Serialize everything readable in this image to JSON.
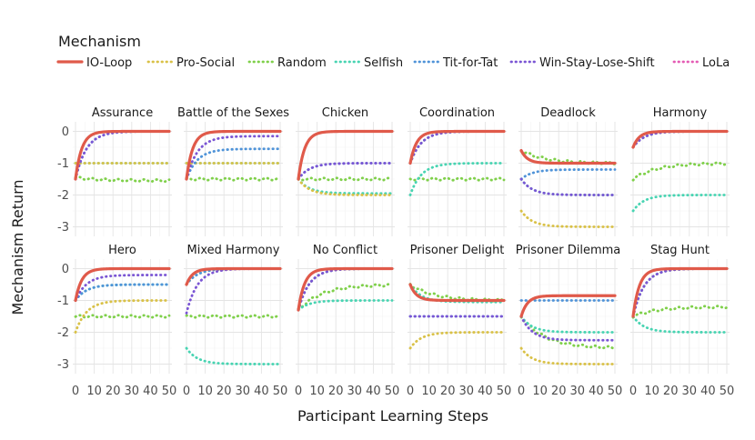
{
  "legend": {
    "title": "Mechanism",
    "items": [
      {
        "name": "IO-Loop",
        "color": "#e05a4a",
        "style": "solid"
      },
      {
        "name": "Pro-Social",
        "color": "#d9c147",
        "style": "dotted"
      },
      {
        "name": "Random",
        "color": "#7fd04a",
        "style": "dotted"
      },
      {
        "name": "Selfish",
        "color": "#48d4b2",
        "style": "dotted"
      },
      {
        "name": "Tit-for-Tat",
        "color": "#4f93d8",
        "style": "dotted"
      },
      {
        "name": "Win-Stay-Lose-Shift",
        "color": "#7a55d4",
        "style": "dotted"
      },
      {
        "name": "LoLa",
        "color": "#e45bb4",
        "style": "dotted"
      }
    ]
  },
  "axes": {
    "xlabel": "Participant Learning Steps",
    "ylabel": "Mechanism Return"
  },
  "chart_data": {
    "type": "line",
    "xlim": [
      0,
      50
    ],
    "ylim": [
      -3.3,
      0.3
    ],
    "xticks": [
      "0",
      "10",
      "20",
      "30",
      "40",
      "50"
    ],
    "yticks": [
      "0",
      "-1",
      "-2",
      "-3"
    ],
    "grid": true,
    "legend_position": "top",
    "panels": [
      {
        "title": "Assurance",
        "series": [
          {
            "name": "IO-Loop",
            "start": -1.5,
            "end": 0
          },
          {
            "name": "LoLa",
            "start": -1.5,
            "end": 0
          },
          {
            "name": "Win-Stay-Lose-Shift",
            "start": -1.5,
            "end": 0
          },
          {
            "name": "Tit-for-Tat",
            "start": -1.5,
            "end": 0
          },
          {
            "name": "Pro-Social",
            "start": -1.0,
            "end": -1.0
          },
          {
            "name": "Selfish",
            "start": -1.0,
            "end": -1.0
          },
          {
            "name": "Random",
            "start": -1.45,
            "end": -1.55
          }
        ]
      },
      {
        "title": "Battle of the Sexes",
        "series": [
          {
            "name": "IO-Loop",
            "start": -1.5,
            "end": 0
          },
          {
            "name": "LoLa",
            "start": -1.5,
            "end": 0
          },
          {
            "name": "Win-Stay-Lose-Shift",
            "start": -1.5,
            "end": -0.15
          },
          {
            "name": "Tit-for-Tat",
            "start": -1.5,
            "end": -0.55
          },
          {
            "name": "Pro-Social",
            "start": -1.0,
            "end": -1.0
          },
          {
            "name": "Selfish",
            "start": -1.0,
            "end": -1.0
          },
          {
            "name": "Random",
            "start": -1.5,
            "end": -1.5
          }
        ]
      },
      {
        "title": "Chicken",
        "series": [
          {
            "name": "IO-Loop",
            "start": -1.5,
            "end": 0
          },
          {
            "name": "LoLa",
            "start": -1.5,
            "end": 0
          },
          {
            "name": "Win-Stay-Lose-Shift",
            "start": -1.5,
            "end": -1.0
          },
          {
            "name": "Tit-for-Tat",
            "start": -1.5,
            "end": -1.0
          },
          {
            "name": "Selfish",
            "start": -1.5,
            "end": -1.95
          },
          {
            "name": "Pro-Social",
            "start": -1.5,
            "end": -2.0
          },
          {
            "name": "Random",
            "start": -1.5,
            "end": -1.5
          }
        ]
      },
      {
        "title": "Coordination",
        "series": [
          {
            "name": "IO-Loop",
            "start": -1.0,
            "end": 0
          },
          {
            "name": "LoLa",
            "start": -1.0,
            "end": 0
          },
          {
            "name": "Win-Stay-Lose-Shift",
            "start": -1.0,
            "end": 0
          },
          {
            "name": "Tit-for-Tat",
            "start": -1.0,
            "end": 0
          },
          {
            "name": "Pro-Social",
            "start": -1.0,
            "end": 0
          },
          {
            "name": "Selfish",
            "start": -2.0,
            "end": -1.0
          },
          {
            "name": "Random",
            "start": -1.5,
            "end": -1.5
          }
        ]
      },
      {
        "title": "Deadlock",
        "series": [
          {
            "name": "IO-Loop",
            "start": -0.6,
            "end": -1.0
          },
          {
            "name": "LoLa",
            "start": -0.6,
            "end": -1.0
          },
          {
            "name": "Random",
            "start": -0.6,
            "end": -1.0
          },
          {
            "name": "Tit-for-Tat",
            "start": -1.5,
            "end": -1.2
          },
          {
            "name": "Selfish",
            "start": -1.5,
            "end": -2.0
          },
          {
            "name": "Win-Stay-Lose-Shift",
            "start": -1.5,
            "end": -2.0
          },
          {
            "name": "Pro-Social",
            "start": -2.5,
            "end": -3.0
          }
        ]
      },
      {
        "title": "Harmony",
        "series": [
          {
            "name": "IO-Loop",
            "start": -0.5,
            "end": 0
          },
          {
            "name": "LoLa",
            "start": -0.5,
            "end": 0
          },
          {
            "name": "Win-Stay-Lose-Shift",
            "start": -0.5,
            "end": 0
          },
          {
            "name": "Tit-for-Tat",
            "start": -0.5,
            "end": 0
          },
          {
            "name": "Pro-Social",
            "start": -0.5,
            "end": 0
          },
          {
            "name": "Random",
            "start": -1.5,
            "end": -1.0
          },
          {
            "name": "Selfish",
            "start": -2.5,
            "end": -2.0
          }
        ]
      },
      {
        "title": "Hero",
        "series": [
          {
            "name": "IO-Loop",
            "start": -1.0,
            "end": 0
          },
          {
            "name": "LoLa",
            "start": -1.0,
            "end": 0
          },
          {
            "name": "Win-Stay-Lose-Shift",
            "start": -1.0,
            "end": -0.2
          },
          {
            "name": "Tit-for-Tat",
            "start": -1.0,
            "end": -0.5
          },
          {
            "name": "Selfish",
            "start": -1.0,
            "end": -0.5
          },
          {
            "name": "Pro-Social",
            "start": -2.0,
            "end": -1.0
          },
          {
            "name": "Random",
            "start": -1.5,
            "end": -1.5
          }
        ]
      },
      {
        "title": "Mixed Harmony",
        "series": [
          {
            "name": "IO-Loop",
            "start": -0.5,
            "end": 0
          },
          {
            "name": "LoLa",
            "start": -0.5,
            "end": 0
          },
          {
            "name": "Tit-for-Tat",
            "start": -0.5,
            "end": 0
          },
          {
            "name": "Pro-Social",
            "start": -0.5,
            "end": 0
          },
          {
            "name": "Win-Stay-Lose-Shift",
            "start": -1.4,
            "end": 0
          },
          {
            "name": "Random",
            "start": -1.5,
            "end": -1.5
          },
          {
            "name": "Selfish",
            "start": -2.5,
            "end": -3.0
          }
        ]
      },
      {
        "title": "No Conflict",
        "series": [
          {
            "name": "IO-Loop",
            "start": -1.3,
            "end": 0
          },
          {
            "name": "LoLa",
            "start": -1.3,
            "end": 0
          },
          {
            "name": "Win-Stay-Lose-Shift",
            "start": -1.3,
            "end": 0
          },
          {
            "name": "Tit-for-Tat",
            "start": -1.3,
            "end": 0
          },
          {
            "name": "Pro-Social",
            "start": -1.3,
            "end": 0
          },
          {
            "name": "Random",
            "start": -1.3,
            "end": -0.5
          },
          {
            "name": "Selfish",
            "start": -1.3,
            "end": -1.0
          }
        ]
      },
      {
        "title": "Prisoner Delight",
        "series": [
          {
            "name": "IO-Loop",
            "start": -0.5,
            "end": -1.0
          },
          {
            "name": "LoLa",
            "start": -0.5,
            "end": -1.0
          },
          {
            "name": "Random",
            "start": -0.5,
            "end": -1.0
          },
          {
            "name": "Selfish",
            "start": -0.5,
            "end": -1.05
          },
          {
            "name": "Tit-for-Tat",
            "start": -1.5,
            "end": -1.5
          },
          {
            "name": "Win-Stay-Lose-Shift",
            "start": -1.5,
            "end": -1.5
          },
          {
            "name": "Pro-Social",
            "start": -2.5,
            "end": -2.0
          }
        ]
      },
      {
        "title": "Prisoner Dilemma",
        "series": [
          {
            "name": "IO-Loop",
            "start": -1.5,
            "end": -0.85
          },
          {
            "name": "LoLa",
            "start": -1.5,
            "end": -0.85
          },
          {
            "name": "Tit-for-Tat",
            "start": -1.0,
            "end": -1.0
          },
          {
            "name": "Selfish",
            "start": -1.5,
            "end": -2.0
          },
          {
            "name": "Win-Stay-Lose-Shift",
            "start": -1.5,
            "end": -2.25
          },
          {
            "name": "Random",
            "start": -1.5,
            "end": -2.5
          },
          {
            "name": "Pro-Social",
            "start": -2.5,
            "end": -3.0
          }
        ]
      },
      {
        "title": "Stag Hunt",
        "series": [
          {
            "name": "IO-Loop",
            "start": -1.5,
            "end": 0
          },
          {
            "name": "LoLa",
            "start": -1.5,
            "end": 0
          },
          {
            "name": "Win-Stay-Lose-Shift",
            "start": -1.5,
            "end": 0
          },
          {
            "name": "Tit-for-Tat",
            "start": -1.5,
            "end": 0
          },
          {
            "name": "Pro-Social",
            "start": -1.5,
            "end": 0
          },
          {
            "name": "Random",
            "start": -1.5,
            "end": -1.2
          },
          {
            "name": "Selfish",
            "start": -1.5,
            "end": -2.0
          }
        ]
      }
    ]
  }
}
